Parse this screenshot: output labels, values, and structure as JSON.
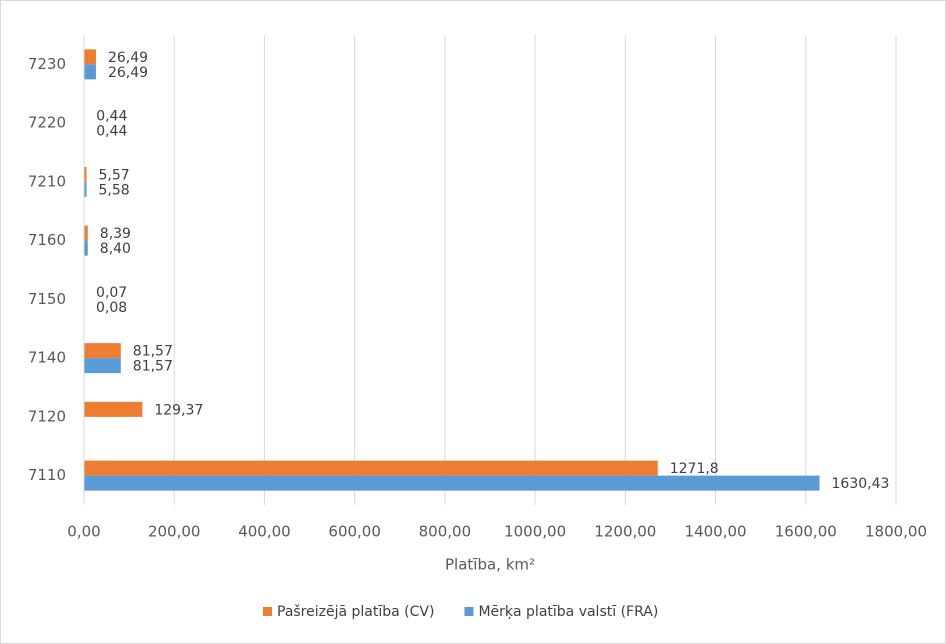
{
  "chart_data": {
    "type": "hbar",
    "x_label": "Platība, km²",
    "categories": [
      "7110",
      "7120",
      "7140",
      "7150",
      "7160",
      "7210",
      "7220",
      "7230"
    ],
    "series": [
      {
        "name": "Pašreizējā platība (CV)",
        "color": "#ed7d31",
        "values": [
          1271.8,
          129.37,
          81.57,
          0.07,
          8.39,
          5.57,
          0.44,
          26.49
        ],
        "value_labels": [
          "1271,8",
          "129,37",
          "81,57",
          "0,07",
          "8,39",
          "5,57",
          "0,44",
          "26,49"
        ]
      },
      {
        "name": "Mērķa platība valstī (FRA)",
        "color": "#5b9bd5",
        "values": [
          1630.43,
          null,
          81.57,
          0.08,
          8.4,
          5.58,
          0.44,
          26.49
        ],
        "value_labels": [
          "1630,43",
          null,
          "81,57",
          "0,08",
          "8,40",
          "5,58",
          "0,44",
          "26,49"
        ]
      }
    ],
    "xlim": [
      0,
      1800
    ],
    "xticks": [
      {
        "value": 0,
        "label": "0,00"
      },
      {
        "value": 200,
        "label": "200,00"
      },
      {
        "value": 400,
        "label": "400,00"
      },
      {
        "value": 600,
        "label": "600,00"
      },
      {
        "value": 800,
        "label": "800,00"
      },
      {
        "value": 1000,
        "label": "1000,00"
      },
      {
        "value": 1200,
        "label": "1200,00"
      },
      {
        "value": 1400,
        "label": "1400,00"
      },
      {
        "value": 1600,
        "label": "1600,00"
      },
      {
        "value": 1800,
        "label": "1800,00"
      }
    ],
    "grid": true,
    "legend": "bottom"
  }
}
